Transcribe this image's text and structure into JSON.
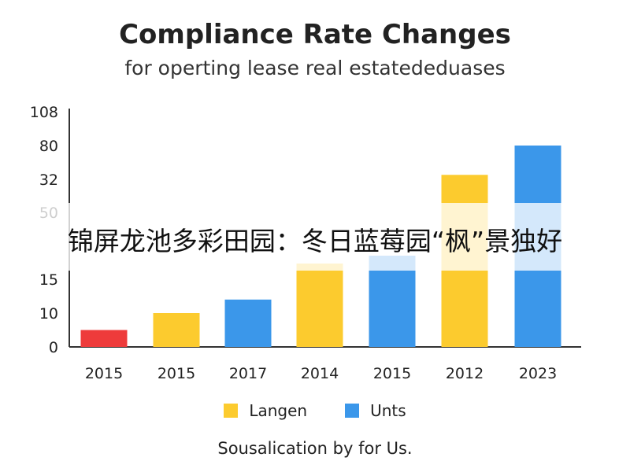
{
  "chart_data": {
    "type": "bar",
    "title": "Compliance Rate Changes",
    "subtitle": "for operting lease real estatededuases",
    "categories": [
      "2015",
      "2015",
      "2017",
      "2014",
      "2015",
      "2012",
      "2023"
    ],
    "values": [
      5,
      10,
      12,
      19,
      21,
      54,
      80
    ],
    "bar_series": [
      "red",
      "Langen",
      "Unts",
      "Langen",
      "Unts",
      "Langen",
      "Unts"
    ],
    "ytick_labels": [
      "0",
      "10",
      "15",
      "",
      "50",
      "32",
      "80",
      "108"
    ],
    "legend": [
      {
        "name": "Langen",
        "color": "#FCCB2E"
      },
      {
        "name": "Unts",
        "color": "#3B97EA"
      }
    ],
    "colors": {
      "red": "#EE3B3B",
      "Langen": "#FCCB2E",
      "Unts": "#3B97EA"
    },
    "legend_position": "bottom",
    "grid": false
  },
  "source": "Sousalication by for Us.",
  "overlay_text": "锦屏龙池多彩田园：冬日蓝莓园“枫”景独好"
}
